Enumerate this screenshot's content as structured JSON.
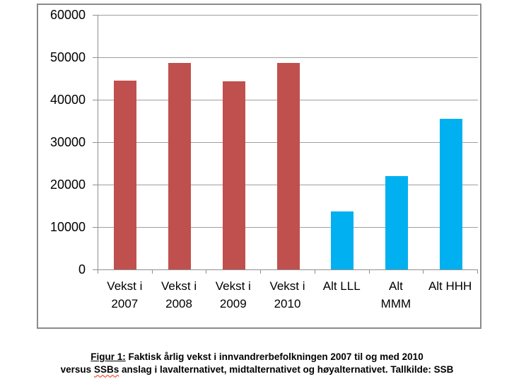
{
  "figure": {
    "caption": {
      "label": "Figur 1:",
      "line1_rest": " Faktisk årlig vekst i innvandrerbefolkningen 2007 til og med 2010",
      "line2_pre": "versus ",
      "misspelled_word": "SSBs",
      "line2_rest": " anslag i lavalternativet, midtalternativet og høyalternativet. Tallkilde: SSB"
    }
  },
  "chart_data": {
    "type": "bar",
    "title": "",
    "xlabel": "",
    "ylabel": "",
    "categories": [
      "Vekst i 2007",
      "Vekst i 2008",
      "Vekst i 2009",
      "Vekst i 2010",
      "Alt LLL",
      "Alt MMM",
      "Alt HHH"
    ],
    "category_label_lines": [
      [
        "Vekst i",
        "2007"
      ],
      [
        "Vekst i",
        "2008"
      ],
      [
        "Vekst i",
        "2009"
      ],
      [
        "Vekst i",
        "2010"
      ],
      [
        "Alt LLL"
      ],
      [
        "Alt",
        "MMM"
      ],
      [
        "Alt HHH"
      ]
    ],
    "values": [
      44500,
      48600,
      44300,
      48700,
      13700,
      22000,
      35500
    ],
    "bar_colors": [
      "#C0504D",
      "#C0504D",
      "#C0504D",
      "#C0504D",
      "#00B0F0",
      "#00B0F0",
      "#00B0F0"
    ],
    "ylim": [
      0,
      60000
    ],
    "y_ticks": [
      0,
      10000,
      20000,
      30000,
      40000,
      50000,
      60000
    ],
    "y_tick_labels": [
      "0",
      "10000",
      "20000",
      "30000",
      "40000",
      "50000",
      "60000"
    ],
    "grid": true,
    "legend": false
  },
  "colors": {
    "bar_red": "#C0504D",
    "bar_blue": "#00B0F0",
    "gridline": "#9E9E9E",
    "axis": "#8F8F8F",
    "frame_border": "#8B8B8B",
    "spellcheck_underline": "#FF2000"
  }
}
